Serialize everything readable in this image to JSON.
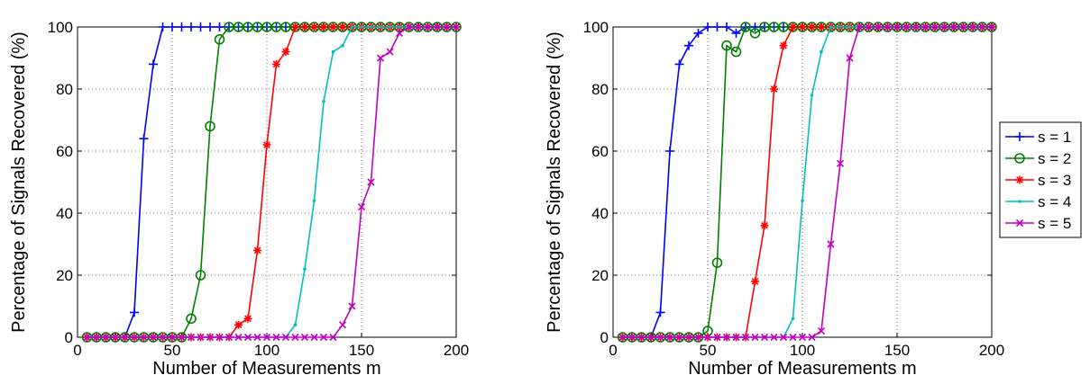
{
  "chart_data": [
    {
      "type": "line",
      "xlabel": "Number of Measurements m",
      "ylabel": "Percentage of Signals Recovered (%)",
      "xlim": [
        0,
        200
      ],
      "ylim": [
        0,
        100
      ],
      "xticks": [
        "0",
        "50",
        "100",
        "150",
        "200"
      ],
      "yticks": [
        "0",
        "20",
        "40",
        "60",
        "80",
        "100"
      ],
      "grid": true,
      "x": [
        5,
        10,
        15,
        20,
        25,
        30,
        35,
        40,
        45,
        50,
        55,
        60,
        65,
        70,
        75,
        80,
        85,
        90,
        95,
        100,
        105,
        110,
        115,
        120,
        125,
        130,
        135,
        140,
        145,
        150,
        155,
        160,
        165,
        170,
        175,
        180,
        185,
        190,
        195,
        200
      ],
      "series": [
        {
          "name": "s = 1",
          "color": "#0000ff",
          "marker": "plus",
          "values": [
            0,
            0,
            0,
            0,
            0,
            8,
            64,
            88,
            100,
            100,
            100,
            100,
            100,
            100,
            100,
            100,
            100,
            100,
            100,
            100,
            100,
            100,
            100,
            100,
            100,
            100,
            100,
            100,
            100,
            100,
            100,
            100,
            100,
            100,
            100,
            100,
            100,
            100,
            100,
            100
          ]
        },
        {
          "name": "s = 2",
          "color": "#008000",
          "marker": "circle",
          "values": [
            0,
            0,
            0,
            0,
            0,
            0,
            0,
            0,
            0,
            0,
            0,
            6,
            20,
            68,
            96,
            100,
            100,
            100,
            100,
            100,
            100,
            100,
            100,
            100,
            100,
            100,
            100,
            100,
            100,
            100,
            100,
            100,
            100,
            100,
            100,
            100,
            100,
            100,
            100,
            100
          ]
        },
        {
          "name": "s = 3",
          "color": "#ff0000",
          "marker": "star",
          "values": [
            0,
            0,
            0,
            0,
            0,
            0,
            0,
            0,
            0,
            0,
            0,
            0,
            0,
            0,
            0,
            0,
            4,
            6,
            28,
            62,
            88,
            92,
            100,
            100,
            100,
            100,
            100,
            100,
            100,
            100,
            100,
            100,
            100,
            100,
            100,
            100,
            100,
            100,
            100,
            100
          ]
        },
        {
          "name": "s = 4",
          "color": "#00bfbf",
          "marker": "point",
          "values": [
            0,
            0,
            0,
            0,
            0,
            0,
            0,
            0,
            0,
            0,
            0,
            0,
            0,
            0,
            0,
            0,
            0,
            0,
            0,
            0,
            0,
            0,
            4,
            22,
            44,
            76,
            92,
            94,
            100,
            100,
            100,
            100,
            100,
            100,
            100,
            100,
            100,
            100,
            100,
            100
          ]
        },
        {
          "name": "s = 5",
          "color": "#bf00bf",
          "marker": "x",
          "values": [
            0,
            0,
            0,
            0,
            0,
            0,
            0,
            0,
            0,
            0,
            0,
            0,
            0,
            0,
            0,
            0,
            0,
            0,
            0,
            0,
            0,
            0,
            0,
            0,
            0,
            0,
            0,
            4,
            10,
            42,
            50,
            90,
            92,
            98,
            100,
            100,
            100,
            100,
            100,
            100
          ]
        }
      ]
    },
    {
      "type": "line",
      "xlabel": "Number of Measurements m",
      "ylabel": "Percentage of Signals Recovered (%)",
      "xlim": [
        0,
        200
      ],
      "ylim": [
        0,
        100
      ],
      "xticks": [
        "0",
        "50",
        "100",
        "150",
        "200"
      ],
      "yticks": [
        "0",
        "20",
        "40",
        "60",
        "80",
        "100"
      ],
      "grid": true,
      "legend": "right",
      "x": [
        5,
        10,
        15,
        20,
        25,
        30,
        35,
        40,
        45,
        50,
        55,
        60,
        65,
        70,
        75,
        80,
        85,
        90,
        95,
        100,
        105,
        110,
        115,
        120,
        125,
        130,
        135,
        140,
        145,
        150,
        155,
        160,
        165,
        170,
        175,
        180,
        185,
        190,
        195,
        200
      ],
      "series": [
        {
          "name": "s = 1",
          "color": "#0000ff",
          "marker": "plus",
          "values": [
            0,
            0,
            0,
            0,
            8,
            60,
            88,
            94,
            98,
            100,
            100,
            100,
            98,
            100,
            100,
            100,
            100,
            100,
            100,
            100,
            100,
            100,
            100,
            100,
            100,
            100,
            100,
            100,
            100,
            100,
            100,
            100,
            100,
            100,
            100,
            100,
            100,
            100,
            100,
            100
          ]
        },
        {
          "name": "s = 2",
          "color": "#008000",
          "marker": "circle",
          "values": [
            0,
            0,
            0,
            0,
            0,
            0,
            0,
            0,
            0,
            2,
            24,
            94,
            92,
            100,
            98,
            100,
            100,
            100,
            100,
            100,
            100,
            100,
            100,
            100,
            100,
            100,
            100,
            100,
            100,
            100,
            100,
            100,
            100,
            100,
            100,
            100,
            100,
            100,
            100,
            100
          ]
        },
        {
          "name": "s = 3",
          "color": "#ff0000",
          "marker": "star",
          "values": [
            0,
            0,
            0,
            0,
            0,
            0,
            0,
            0,
            0,
            0,
            0,
            0,
            0,
            0,
            18,
            36,
            80,
            94,
            100,
            100,
            100,
            100,
            100,
            100,
            100,
            100,
            100,
            100,
            100,
            100,
            100,
            100,
            100,
            100,
            100,
            100,
            100,
            100,
            100,
            100
          ]
        },
        {
          "name": "s = 4",
          "color": "#00bfbf",
          "marker": "point",
          "values": [
            0,
            0,
            0,
            0,
            0,
            0,
            0,
            0,
            0,
            0,
            0,
            0,
            0,
            0,
            0,
            0,
            0,
            0,
            6,
            44,
            78,
            92,
            100,
            100,
            100,
            100,
            100,
            100,
            100,
            100,
            100,
            100,
            100,
            100,
            100,
            100,
            100,
            100,
            100,
            100
          ]
        },
        {
          "name": "s = 5",
          "color": "#bf00bf",
          "marker": "x",
          "values": [
            0,
            0,
            0,
            0,
            0,
            0,
            0,
            0,
            0,
            0,
            0,
            0,
            0,
            0,
            0,
            0,
            0,
            0,
            0,
            0,
            0,
            2,
            30,
            56,
            90,
            100,
            100,
            100,
            100,
            100,
            100,
            100,
            100,
            100,
            100,
            100,
            100,
            100,
            100,
            100
          ]
        }
      ]
    }
  ]
}
